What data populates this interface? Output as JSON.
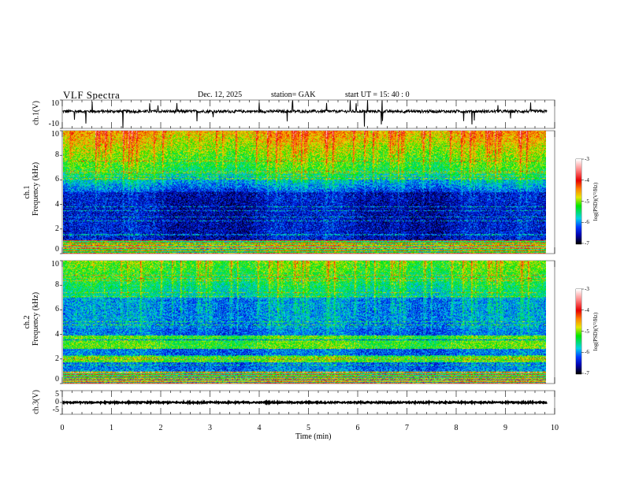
{
  "header": {
    "title": "VLF  Spectra",
    "date": "Dec. 12,  2025",
    "station": "station= GAK",
    "start": "start  UT  =    15: 40 : 0"
  },
  "chart_data": {
    "type": "heatmap",
    "title": "VLF Spectra",
    "xlabel": "Time  (min)",
    "xlim": [
      0,
      10
    ],
    "x_ticks": [
      "0",
      "1",
      "2",
      "3",
      "4",
      "5",
      "6",
      "7",
      "8",
      "9",
      "10"
    ],
    "data_end_min": 9.85,
    "panels": [
      {
        "name": "ch1-waveform",
        "type": "line",
        "ylabel": "ch.1(V)",
        "ylim": [
          -10,
          10
        ],
        "y_ticks": [
          "10",
          "-10"
        ],
        "baseline": 2
      },
      {
        "name": "ch1-spectrogram",
        "type": "heatmap",
        "ylabel_top": "ch.1",
        "ylabel": "Frequency  (kHz)",
        "ylim": [
          0,
          10
        ],
        "y_ticks": [
          "10",
          "8",
          "6",
          "4",
          "2",
          "0"
        ]
      },
      {
        "name": "ch2-spectrogram",
        "type": "heatmap",
        "ylabel_top": "ch.2",
        "ylabel": "Frequency  (kHz)",
        "ylim": [
          0,
          10
        ],
        "y_ticks": [
          "10",
          "8",
          "6",
          "4",
          "2",
          "0"
        ]
      },
      {
        "name": "ch3-waveform",
        "type": "line",
        "ylabel": "ch.3(V)",
        "ylim": [
          -5,
          5
        ],
        "y_ticks": [
          "5",
          "0",
          "-5"
        ],
        "baseline": 0
      }
    ],
    "colorbar": {
      "label": "log(PSD)(V²/Hz)",
      "range": [
        -7,
        -3
      ],
      "ticks": [
        "-3",
        "-4",
        "-5",
        "-6",
        "-7"
      ]
    }
  }
}
